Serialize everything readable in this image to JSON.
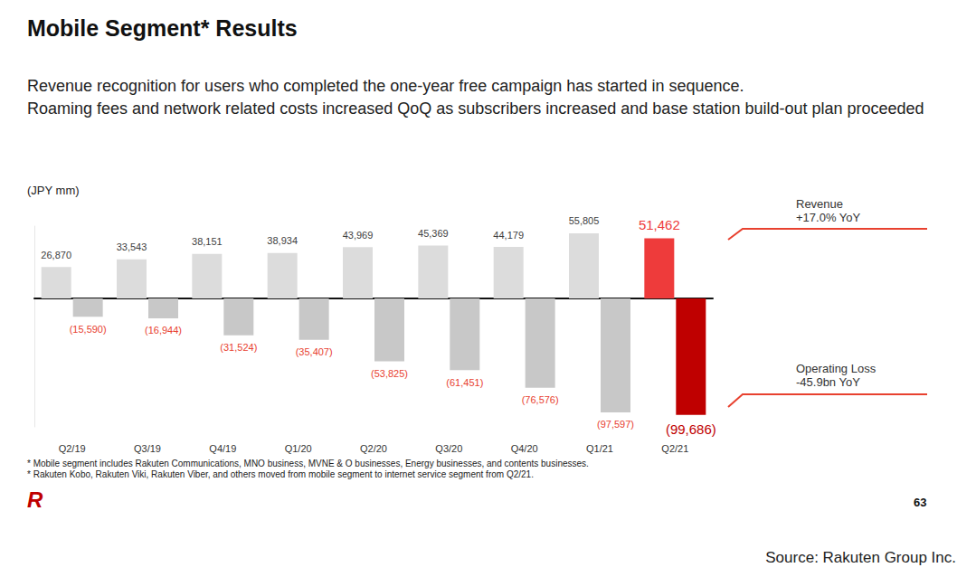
{
  "chart_data": {
    "type": "bar",
    "title": "Mobile Segment* Results",
    "subtitle": [
      "Revenue recognition for users who completed the one-year free campaign has started in sequence.",
      "Roaming fees and network related costs increased QoQ as subscribers increased and base station build-out plan proceeded"
    ],
    "unit_label": "(JPY mm)",
    "categories": [
      "Q2/19",
      "Q3/19",
      "Q4/19",
      "Q1/20",
      "Q2/20",
      "Q3/20",
      "Q4/20",
      "Q1/21",
      "Q2/21"
    ],
    "series": [
      {
        "name": "Revenue",
        "values": [
          26870,
          33543,
          38151,
          38934,
          43969,
          45369,
          44179,
          55805,
          51462
        ],
        "value_labels": [
          "26,870",
          "33,543",
          "38,151",
          "38,934",
          "43,969",
          "45,369",
          "44,179",
          "55,805",
          "51,462"
        ],
        "colors": [
          "#dcdcdc",
          "#dcdcdc",
          "#dcdcdc",
          "#dcdcdc",
          "#dcdcdc",
          "#dcdcdc",
          "#dcdcdc",
          "#dcdcdc",
          "#ee3b3b"
        ]
      },
      {
        "name": "Operating Loss",
        "values": [
          -15590,
          -16944,
          -31524,
          -35407,
          -53825,
          -61451,
          -76576,
          -97597,
          -99686
        ],
        "value_labels": [
          "(15,590)",
          "(16,944)",
          "(31,524)",
          "(35,407)",
          "(53,825)",
          "(61,451)",
          "(76,576)",
          "(97,597)",
          "(99,686)"
        ],
        "colors": [
          "#c8c8c8",
          "#c8c8c8",
          "#c8c8c8",
          "#c8c8c8",
          "#c8c8c8",
          "#c8c8c8",
          "#c8c8c8",
          "#c8c8c8",
          "#bf0000"
        ]
      }
    ],
    "ylim": [
      -110000,
      62000
    ],
    "grid": false,
    "tick_labels": "x",
    "data_labels": true,
    "annotations": [
      {
        "series": "Revenue",
        "lines": [
          "Revenue",
          "+17.0% YoY"
        ]
      },
      {
        "series": "Operating Loss",
        "lines": [
          "Operating Loss",
          "-45.9bn YoY"
        ]
      }
    ],
    "footnotes": [
      "* Mobile segment includes Rakuten Communications, MNO business, MVNE & O businesses, Energy businesses, and contents businesses.",
      "* Rakuten Kobo, Rakuten Viki, Rakuten Viber, and others moved from mobile segment to internet service segment from Q2/21."
    ],
    "logo": "R",
    "page_number": "63",
    "source": "Source: Rakuten Group Inc."
  }
}
